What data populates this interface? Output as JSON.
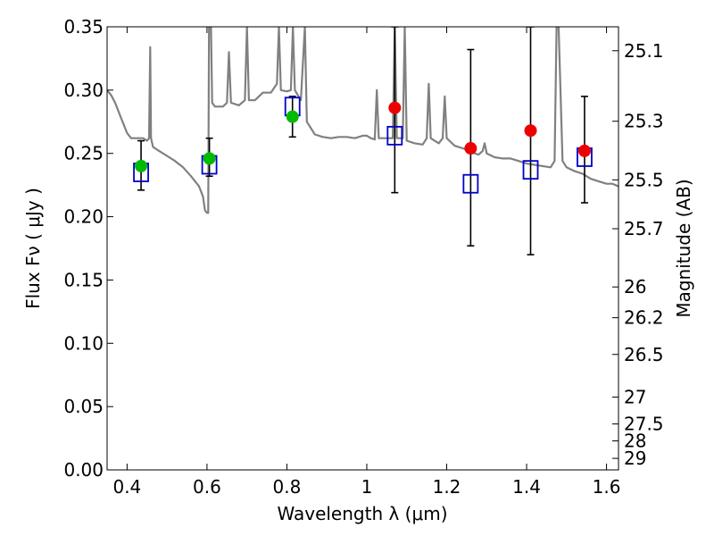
{
  "colors": {
    "spectrum": "#808080",
    "green": "#00bb00",
    "red": "#ee0000",
    "box": "#0000cc",
    "errorbar": "#000000"
  },
  "chart_data": {
    "type": "scatter",
    "xlabel": "Wavelength  λ (μm)",
    "ylabel": "Flux  Fν  ( μJy )",
    "ylabel_right": "Magnitude (AB)",
    "xlim": [
      0.35,
      1.63
    ],
    "ylim": [
      0.0,
      0.35
    ],
    "x_ticks": [
      0.4,
      0.6,
      0.8,
      1.0,
      1.2,
      1.4,
      1.6
    ],
    "x_tick_labels": [
      "0.4",
      "0.6",
      "0.8",
      "1",
      "1.2",
      "1.4",
      "1.6"
    ],
    "y_ticks": [
      0.0,
      0.05,
      0.1,
      0.15,
      0.2,
      0.25,
      0.3,
      0.35
    ],
    "y_tick_labels": [
      "0.00",
      "0.05",
      "0.10",
      "0.15",
      "0.20",
      "0.25",
      "0.30",
      "0.35"
    ],
    "mag_ticks": [
      {
        "label": "25.1",
        "flux": 0.3311
      },
      {
        "label": "25.3",
        "flux": 0.2754
      },
      {
        "label": "25.5",
        "flux": 0.2291
      },
      {
        "label": "25.7",
        "flux": 0.1905
      },
      {
        "label": "26",
        "flux": 0.1445
      },
      {
        "label": "26.2",
        "flux": 0.1202
      },
      {
        "label": "26.5",
        "flux": 0.0912
      },
      {
        "label": "27",
        "flux": 0.0575
      },
      {
        "label": "27.5",
        "flux": 0.0363
      },
      {
        "label": "28",
        "flux": 0.0229
      },
      {
        "label": "29",
        "flux": 0.0091
      }
    ],
    "observed_points": [
      {
        "x": 0.435,
        "y": 0.24,
        "err_lo": 0.221,
        "err_hi": 0.26,
        "color": "green"
      },
      {
        "x": 0.606,
        "y": 0.246,
        "err_lo": 0.232,
        "err_hi": 0.262,
        "color": "green"
      },
      {
        "x": 0.814,
        "y": 0.279,
        "err_lo": 0.263,
        "err_hi": 0.295,
        "color": "green"
      },
      {
        "x": 1.07,
        "y": 0.286,
        "err_lo": 0.219,
        "err_hi": 0.35,
        "color": "red"
      },
      {
        "x": 1.26,
        "y": 0.254,
        "err_lo": 0.177,
        "err_hi": 0.332,
        "color": "red"
      },
      {
        "x": 1.41,
        "y": 0.268,
        "err_lo": 0.17,
        "err_hi": 0.35,
        "color": "red"
      },
      {
        "x": 1.545,
        "y": 0.252,
        "err_lo": 0.211,
        "err_hi": 0.295,
        "color": "red"
      }
    ],
    "model_points": [
      {
        "x": 0.435,
        "y": 0.235
      },
      {
        "x": 0.606,
        "y": 0.241
      },
      {
        "x": 0.814,
        "y": 0.287
      },
      {
        "x": 1.07,
        "y": 0.264
      },
      {
        "x": 1.26,
        "y": 0.226
      },
      {
        "x": 1.41,
        "y": 0.237
      },
      {
        "x": 1.545,
        "y": 0.247
      }
    ],
    "spectrum": [
      [
        0.35,
        0.3
      ],
      [
        0.36,
        0.296
      ],
      [
        0.37,
        0.29
      ],
      [
        0.38,
        0.282
      ],
      [
        0.39,
        0.274
      ],
      [
        0.4,
        0.266
      ],
      [
        0.41,
        0.262
      ],
      [
        0.42,
        0.262
      ],
      [
        0.43,
        0.262
      ],
      [
        0.44,
        0.262
      ],
      [
        0.45,
        0.26
      ],
      [
        0.455,
        0.262
      ],
      [
        0.458,
        0.334
      ],
      [
        0.46,
        0.262
      ],
      [
        0.465,
        0.255
      ],
      [
        0.48,
        0.252
      ],
      [
        0.5,
        0.248
      ],
      [
        0.52,
        0.244
      ],
      [
        0.54,
        0.239
      ],
      [
        0.56,
        0.232
      ],
      [
        0.58,
        0.224
      ],
      [
        0.59,
        0.216
      ],
      [
        0.595,
        0.205
      ],
      [
        0.6,
        0.203
      ],
      [
        0.603,
        0.203
      ],
      [
        0.605,
        0.35
      ],
      [
        0.61,
        0.35
      ],
      [
        0.613,
        0.29
      ],
      [
        0.62,
        0.287
      ],
      [
        0.64,
        0.287
      ],
      [
        0.65,
        0.29
      ],
      [
        0.655,
        0.33
      ],
      [
        0.66,
        0.29
      ],
      [
        0.68,
        0.288
      ],
      [
        0.695,
        0.292
      ],
      [
        0.7,
        0.35
      ],
      [
        0.705,
        0.292
      ],
      [
        0.72,
        0.292
      ],
      [
        0.74,
        0.298
      ],
      [
        0.76,
        0.298
      ],
      [
        0.775,
        0.305
      ],
      [
        0.78,
        0.35
      ],
      [
        0.785,
        0.3
      ],
      [
        0.8,
        0.299
      ],
      [
        0.81,
        0.3
      ],
      [
        0.815,
        0.35
      ],
      [
        0.82,
        0.3
      ],
      [
        0.835,
        0.292
      ],
      [
        0.845,
        0.35
      ],
      [
        0.85,
        0.275
      ],
      [
        0.87,
        0.265
      ],
      [
        0.89,
        0.263
      ],
      [
        0.91,
        0.262
      ],
      [
        0.93,
        0.263
      ],
      [
        0.95,
        0.263
      ],
      [
        0.97,
        0.262
      ],
      [
        0.99,
        0.264
      ],
      [
        1.0,
        0.264
      ],
      [
        1.01,
        0.262
      ],
      [
        1.02,
        0.261
      ],
      [
        1.025,
        0.3
      ],
      [
        1.03,
        0.262
      ],
      [
        1.05,
        0.262
      ],
      [
        1.065,
        0.262
      ],
      [
        1.07,
        0.35
      ],
      [
        1.075,
        0.262
      ],
      [
        1.09,
        0.262
      ],
      [
        1.095,
        0.35
      ],
      [
        1.1,
        0.26
      ],
      [
        1.12,
        0.258
      ],
      [
        1.14,
        0.257
      ],
      [
        1.15,
        0.262
      ],
      [
        1.155,
        0.305
      ],
      [
        1.16,
        0.262
      ],
      [
        1.18,
        0.258
      ],
      [
        1.19,
        0.262
      ],
      [
        1.195,
        0.295
      ],
      [
        1.2,
        0.262
      ],
      [
        1.22,
        0.256
      ],
      [
        1.24,
        0.254
      ],
      [
        1.26,
        0.252
      ],
      [
        1.27,
        0.25
      ],
      [
        1.28,
        0.249
      ],
      [
        1.29,
        0.252
      ],
      [
        1.295,
        0.258
      ],
      [
        1.3,
        0.25
      ],
      [
        1.32,
        0.247
      ],
      [
        1.34,
        0.246
      ],
      [
        1.36,
        0.246
      ],
      [
        1.38,
        0.244
      ],
      [
        1.4,
        0.242
      ],
      [
        1.42,
        0.241
      ],
      [
        1.44,
        0.24
      ],
      [
        1.46,
        0.239
      ],
      [
        1.47,
        0.244
      ],
      [
        1.475,
        0.35
      ],
      [
        1.48,
        0.35
      ],
      [
        1.49,
        0.244
      ],
      [
        1.5,
        0.239
      ],
      [
        1.52,
        0.236
      ],
      [
        1.54,
        0.234
      ],
      [
        1.56,
        0.23
      ],
      [
        1.58,
        0.228
      ],
      [
        1.6,
        0.226
      ],
      [
        1.615,
        0.226
      ],
      [
        1.63,
        0.224
      ]
    ]
  }
}
